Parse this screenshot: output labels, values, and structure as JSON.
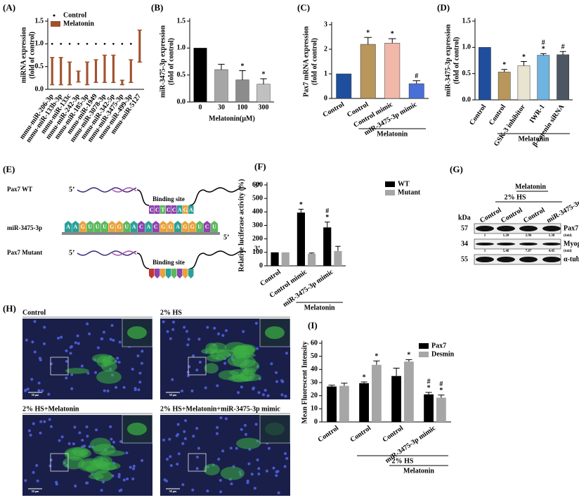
{
  "chart_data": [
    {
      "type": "bar",
      "label": "(A)",
      "ylabel": [
        "miRNA expression",
        "(fold of control)"
      ],
      "categories": [
        "mmu-miR-206-3p",
        "mmu-miR-133b-3p",
        "mmu-miR-133c",
        "mmu-miR-242-3p",
        "mmu-miR-185-3p",
        "mmu-miR-1949",
        "mmu-miR-3078-3p",
        "mmu-miR-342-5p",
        "mmu-miR-3475-3p",
        "mmu-miR-499-3p",
        "mmu-miR-5127"
      ],
      "series": [
        {
          "name": "Control",
          "color": "#000000",
          "marker": "dot",
          "values": [
            1,
            1,
            1,
            1,
            1,
            1,
            1,
            1,
            1,
            1,
            1
          ]
        },
        {
          "name": "Melatonin",
          "color": "#a0522d",
          "marker": "range",
          "values": [
            0.4,
            0.4,
            0.35,
            0.28,
            0.35,
            0.4,
            0.45,
            0.45,
            0.15,
            0.4,
            0.95
          ],
          "errors": [
            0.3,
            0.3,
            0.25,
            0.12,
            0.25,
            0.25,
            0.3,
            0.3,
            0.05,
            0.25,
            0.35
          ]
        }
      ],
      "ylim": [
        0,
        1.5
      ],
      "yticks": [
        {
          "value": 0,
          "label": "0.0"
        },
        0.5,
        {
          "value": 1,
          "label": "1.0"
        },
        1.5
      ]
    },
    {
      "type": "bar",
      "label": "(B)",
      "ylabel": [
        "miR-3475-3p expression",
        "(fold of control)"
      ],
      "xlabel": "Melatonin(μM)",
      "categories": [
        "0",
        "30",
        "100",
        "300"
      ],
      "values": [
        1.0,
        0.6,
        0.41,
        0.33
      ],
      "errors": [
        0,
        0.1,
        0.17,
        0.1
      ],
      "colors": [
        "#000000",
        "#a6a6a6",
        "#8c8c8c",
        "#c0c0c0"
      ],
      "annotations": [
        null,
        null,
        [
          "*"
        ],
        [
          "*"
        ]
      ],
      "ylim": [
        0,
        1.5
      ],
      "yticks": [
        {
          "value": 0,
          "label": "0.0"
        },
        0.5,
        {
          "value": 1,
          "label": "1.0"
        },
        1.5
      ]
    },
    {
      "type": "bar",
      "label": "(C)",
      "ylabel": [
        "Pax7 mRNA expression",
        "(fold of control)"
      ],
      "group_labels": [
        "Melatonin"
      ],
      "categories": [
        "Control",
        "Control",
        "Control mimic",
        "miR-3475-3p mimic"
      ],
      "values": [
        1.0,
        2.2,
        2.25,
        0.6
      ],
      "errors": [
        0,
        0.28,
        0.18,
        0.12
      ],
      "colors": [
        "#1f4e9c",
        "#b8965c",
        "#f0b8a8",
        "#4a6fd6"
      ],
      "annotations": [
        null,
        [
          "*"
        ],
        [
          "*"
        ],
        [
          "#"
        ]
      ],
      "ylim": [
        0,
        3
      ],
      "yticks": [
        0,
        1,
        2,
        3
      ]
    },
    {
      "type": "bar",
      "label": "(D)",
      "ylabel": [
        "miR-3475-3p expression",
        "(fold of control)"
      ],
      "group_labels": [
        "Melatonin"
      ],
      "categories": [
        "Control",
        "Control",
        "GSK-3 inhibitor",
        "IWR-1",
        "β-catenin siRNA"
      ],
      "values": [
        1.0,
        0.53,
        0.65,
        0.85,
        0.86
      ],
      "errors": [
        0,
        0.05,
        0.08,
        0.03,
        0.06
      ],
      "colors": [
        "#1f4e9c",
        "#b8965c",
        "#e8e4d0",
        "#6fb3e0",
        "#4d5663"
      ],
      "annotations": [
        null,
        [
          "*"
        ],
        [
          "*"
        ],
        [
          "#",
          "*"
        ],
        [
          "#"
        ]
      ],
      "ylim": [
        0,
        1.5
      ],
      "yticks": [
        {
          "value": 0,
          "label": "0.0"
        },
        0.5,
        {
          "value": 1,
          "label": "1.0"
        },
        1.5
      ]
    },
    {
      "type": "bar",
      "label": "(F)",
      "ylabel": [
        "Relative luciferase activity (%)"
      ],
      "group_labels": [
        "Melatonin"
      ],
      "categories": [
        "Control",
        "Control mimic",
        "miR-3475-3p mimic"
      ],
      "series": [
        {
          "name": "WT",
          "color": "#000000",
          "values": [
            100,
            395,
            285
          ],
          "errors": [
            0,
            25,
            40
          ],
          "annotations": [
            null,
            [
              "*"
            ],
            [
              "#",
              "*"
            ]
          ]
        },
        {
          "name": "Mutant",
          "color": "#a6a6a6",
          "values": [
            100,
            90,
            110
          ],
          "errors": [
            0,
            5,
            35
          ]
        }
      ],
      "ylim": [
        0,
        600
      ],
      "yticks": [
        0,
        100,
        200,
        300,
        400,
        500,
        600
      ]
    },
    {
      "type": "bar",
      "label": "(I)",
      "ylabel": [
        "Mean Fluorescent Intensity"
      ],
      "group_labels": [
        "2% HS",
        "Melatonin"
      ],
      "categories": [
        "Control",
        "Control",
        "Control",
        "miR-3475-3p mimic"
      ],
      "series": [
        {
          "name": "Pax7",
          "color": "#000000",
          "values": [
            27,
            29.5,
            35,
            21
          ],
          "errors": [
            1,
            1,
            6,
            1.5
          ],
          "annotations": [
            null,
            [
              "*"
            ],
            null,
            [
              "#",
              "*"
            ]
          ]
        },
        {
          "name": "Desmin",
          "color": "#a6a6a6",
          "values": [
            27.5,
            43.5,
            46,
            18.5
          ],
          "errors": [
            2,
            3,
            1.5,
            2
          ],
          "annotations": [
            null,
            [
              "*"
            ],
            [
              "*"
            ],
            [
              "#",
              "*"
            ]
          ]
        }
      ],
      "ylim": [
        0,
        60
      ],
      "yticks": [
        0,
        10,
        20,
        30,
        40,
        50,
        60
      ]
    }
  ],
  "diagram": {
    "label": "(E)",
    "wt": "Pax7 WT",
    "mutant": "Pax7 Mutant",
    "mirna": "miR-3475-3p",
    "site": "Binding site",
    "prime5": "5’",
    "prime3": "3’",
    "wt_site": [
      "C",
      "C",
      "T",
      "C",
      "C",
      "A",
      "G",
      "A"
    ],
    "mirna_seq": [
      "A",
      "A",
      "G",
      "U",
      "U",
      "U",
      "G",
      "G",
      "U",
      "A",
      "C",
      "A",
      "C",
      "G",
      "G",
      "A",
      "G",
      "G",
      "U",
      "C",
      "U"
    ]
  },
  "blot": {
    "label": "(G)",
    "top": "Melatonin",
    "hs": "2% HS",
    "lanes": [
      "Control",
      "Control",
      "Control",
      "miR-3475-3p mimic"
    ],
    "kda": "kDa",
    "rows": [
      {
        "size": "57",
        "protein": "Pax7",
        "fold": [
          "1",
          "1.20",
          "2.96",
          "1.38"
        ],
        "unit": "(fold)"
      },
      {
        "size": "34",
        "protein": "Myogenin",
        "fold": [
          "1",
          "5.48",
          "7.87",
          "4.45"
        ],
        "unit": "(fold)"
      },
      {
        "size": "55",
        "protein": "α-tubulin"
      }
    ]
  },
  "images": {
    "label": "(H)",
    "panels": [
      "Control",
      "2% HS",
      "2% HS+Melatonin",
      "2% HS+Melatonin+miR-3475-3p mimic"
    ],
    "scale": "50 μm"
  }
}
